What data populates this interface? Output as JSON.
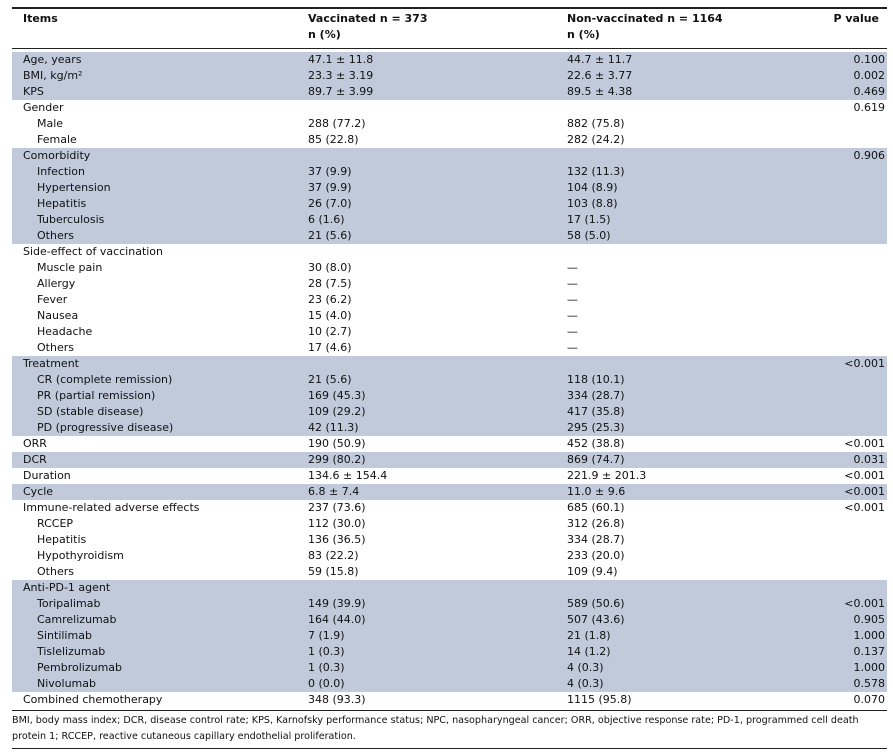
{
  "header": {
    "items": "Items",
    "vaccinated": "Vaccinated n = 373",
    "vaccinated_sub": "n (%)",
    "nonvaccinated": "Non-vaccinated n = 1164",
    "nonvaccinated_sub": "n (%)",
    "pvalue": "P value"
  },
  "rows": [
    {
      "item": "Age, years",
      "vac": "47.1 ± 11.8",
      "non": "44.7 ± 11.7",
      "p": "0.100",
      "indent": false,
      "shade": true
    },
    {
      "item": "BMI, kg/m²",
      "vac": "23.3 ± 3.19",
      "non": "22.6 ± 3.77",
      "p": "0.002",
      "indent": false,
      "shade": true
    },
    {
      "item": "KPS",
      "vac": "89.7 ± 3.99",
      "non": "89.5 ± 4.38",
      "p": "0.469",
      "indent": false,
      "shade": true
    },
    {
      "item": "Gender",
      "vac": "",
      "non": "",
      "p": "0.619",
      "indent": false,
      "shade": false
    },
    {
      "item": "Male",
      "vac": "288 (77.2)",
      "non": "882 (75.8)",
      "p": "",
      "indent": true,
      "shade": false
    },
    {
      "item": "Female",
      "vac": "85 (22.8)",
      "non": "282 (24.2)",
      "p": "",
      "indent": true,
      "shade": false
    },
    {
      "item": "Comorbidity",
      "vac": "",
      "non": "",
      "p": "0.906",
      "indent": false,
      "shade": true
    },
    {
      "item": "Infection",
      "vac": "37 (9.9)",
      "non": "132 (11.3)",
      "p": "",
      "indent": true,
      "shade": true
    },
    {
      "item": "Hypertension",
      "vac": "37 (9.9)",
      "non": "104 (8.9)",
      "p": "",
      "indent": true,
      "shade": true
    },
    {
      "item": "Hepatitis",
      "vac": "26 (7.0)",
      "non": "103 (8.8)",
      "p": "",
      "indent": true,
      "shade": true
    },
    {
      "item": "Tuberculosis",
      "vac": "6 (1.6)",
      "non": "17 (1.5)",
      "p": "",
      "indent": true,
      "shade": true
    },
    {
      "item": "Others",
      "vac": "21 (5.6)",
      "non": "58 (5.0)",
      "p": "",
      "indent": true,
      "shade": true
    },
    {
      "item": "Side-effect of vaccination",
      "vac": "",
      "non": "",
      "p": "",
      "indent": false,
      "shade": false
    },
    {
      "item": "Muscle pain",
      "vac": "30 (8.0)",
      "non": "—",
      "p": "",
      "indent": true,
      "shade": false
    },
    {
      "item": "Allergy",
      "vac": "28 (7.5)",
      "non": "—",
      "p": "",
      "indent": true,
      "shade": false
    },
    {
      "item": "Fever",
      "vac": "23 (6.2)",
      "non": "—",
      "p": "",
      "indent": true,
      "shade": false
    },
    {
      "item": "Nausea",
      "vac": "15 (4.0)",
      "non": "—",
      "p": "",
      "indent": true,
      "shade": false
    },
    {
      "item": "Headache",
      "vac": "10 (2.7)",
      "non": "—",
      "p": "",
      "indent": true,
      "shade": false
    },
    {
      "item": "Others",
      "vac": "17 (4.6)",
      "non": "—",
      "p": "",
      "indent": true,
      "shade": false
    },
    {
      "item": "Treatment",
      "vac": "",
      "non": "",
      "p": "<0.001",
      "indent": false,
      "shade": true
    },
    {
      "item": "CR (complete remission)",
      "vac": "21 (5.6)",
      "non": "118 (10.1)",
      "p": "",
      "indent": true,
      "shade": true
    },
    {
      "item": "PR (partial remission)",
      "vac": "169 (45.3)",
      "non": "334 (28.7)",
      "p": "",
      "indent": true,
      "shade": true
    },
    {
      "item": "SD (stable disease)",
      "vac": "109 (29.2)",
      "non": "417 (35.8)",
      "p": "",
      "indent": true,
      "shade": true
    },
    {
      "item": "PD (progressive disease)",
      "vac": "42 (11.3)",
      "non": "295 (25.3)",
      "p": "",
      "indent": true,
      "shade": true
    },
    {
      "item": "ORR",
      "vac": "190 (50.9)",
      "non": "452 (38.8)",
      "p": "<0.001",
      "indent": false,
      "shade": false
    },
    {
      "item": "DCR",
      "vac": "299 (80.2)",
      "non": "869 (74.7)",
      "p": "0.031",
      "indent": false,
      "shade": true
    },
    {
      "item": "Duration",
      "vac": "134.6 ± 154.4",
      "non": "221.9 ± 201.3",
      "p": "<0.001",
      "indent": false,
      "shade": false
    },
    {
      "item": "Cycle",
      "vac": "6.8 ± 7.4",
      "non": "11.0 ± 9.6",
      "p": "<0.001",
      "indent": false,
      "shade": true
    },
    {
      "item": "Immune-related adverse effects",
      "vac": "237 (73.6)",
      "non": "685 (60.1)",
      "p": "<0.001",
      "indent": false,
      "shade": false
    },
    {
      "item": "RCCEP",
      "vac": "112 (30.0)",
      "non": "312 (26.8)",
      "p": "",
      "indent": true,
      "shade": false
    },
    {
      "item": "Hepatitis",
      "vac": "136 (36.5)",
      "non": "334 (28.7)",
      "p": "",
      "indent": true,
      "shade": false
    },
    {
      "item": "Hypothyroidism",
      "vac": "83 (22.2)",
      "non": "233 (20.0)",
      "p": "",
      "indent": true,
      "shade": false
    },
    {
      "item": "Others",
      "vac": "59 (15.8)",
      "non": "109 (9.4)",
      "p": "",
      "indent": true,
      "shade": false
    },
    {
      "item": "Anti-PD-1 agent",
      "vac": "",
      "non": "",
      "p": "",
      "indent": false,
      "shade": true
    },
    {
      "item": "Toripalimab",
      "vac": "149 (39.9)",
      "non": "589 (50.6)",
      "p": "<0.001",
      "indent": true,
      "shade": true
    },
    {
      "item": "Camrelizumab",
      "vac": "164 (44.0)",
      "non": "507 (43.6)",
      "p": "0.905",
      "indent": true,
      "shade": true
    },
    {
      "item": "Sintilimab",
      "vac": "7 (1.9)",
      "non": "21 (1.8)",
      "p": "1.000",
      "indent": true,
      "shade": true
    },
    {
      "item": "Tislelizumab",
      "vac": "1 (0.3)",
      "non": "14 (1.2)",
      "p": "0.137",
      "indent": true,
      "shade": true
    },
    {
      "item": "Pembrolizumab",
      "vac": "1 (0.3)",
      "non": "4 (0.3)",
      "p": "1.000",
      "indent": true,
      "shade": true
    },
    {
      "item": "Nivolumab",
      "vac": "0 (0.0)",
      "non": "4 (0.3)",
      "p": "0.578",
      "indent": true,
      "shade": true
    },
    {
      "item": "Combined chemotherapy",
      "vac": "348 (93.3)",
      "non": "1115 (95.8)",
      "p": "0.070",
      "indent": false,
      "shade": false
    }
  ],
  "footnote": "BMI, body mass index; DCR, disease control rate; KPS, Karnofsky performance status; NPC, nasopharyngeal cancer; ORR, objective response rate; PD-1, programmed cell death protein 1; RCCEP, reactive cutaneous capillary endothelial proliferation.",
  "colors": {
    "shade": "#c0cadb",
    "rule": "#222222"
  }
}
